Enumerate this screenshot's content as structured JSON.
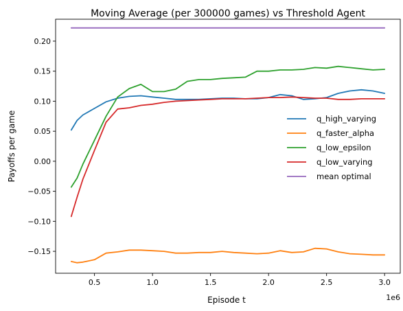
{
  "chart_data": {
    "type": "line",
    "title": "Moving Average (per 300000 games) vs Threshold Agent",
    "xlabel": "Episode t",
    "ylabel": "Payoffs per game",
    "x_offset_text": "1e6",
    "xlim": [
      0.165,
      3.135
    ],
    "ylim": [
      -0.1865,
      0.2365
    ],
    "xticks": [
      0.5,
      1.0,
      1.5,
      2.0,
      2.5,
      3.0
    ],
    "xtick_labels": [
      "0.5",
      "1.0",
      "1.5",
      "2.0",
      "2.5",
      "3.0"
    ],
    "yticks": [
      -0.15,
      -0.1,
      -0.05,
      0.0,
      0.05,
      0.1,
      0.15,
      0.2
    ],
    "ytick_labels": [
      "−0.15",
      "−0.10",
      "−0.05",
      "0.00",
      "0.05",
      "0.10",
      "0.15",
      "0.20"
    ],
    "grid": false,
    "legend_position": "center-right",
    "series": [
      {
        "name": "q_high_varying",
        "color": "#1f77b4",
        "x": [
          0.3,
          0.35,
          0.4,
          0.5,
          0.6,
          0.7,
          0.8,
          0.9,
          1.0,
          1.1,
          1.2,
          1.3,
          1.4,
          1.5,
          1.6,
          1.7,
          1.8,
          1.9,
          2.0,
          2.1,
          2.2,
          2.3,
          2.4,
          2.5,
          2.6,
          2.7,
          2.8,
          2.9,
          3.0
        ],
        "y": [
          0.052,
          0.068,
          0.077,
          0.088,
          0.099,
          0.105,
          0.108,
          0.109,
          0.107,
          0.105,
          0.103,
          0.103,
          0.103,
          0.104,
          0.105,
          0.105,
          0.104,
          0.104,
          0.106,
          0.111,
          0.109,
          0.103,
          0.104,
          0.106,
          0.113,
          0.117,
          0.119,
          0.117,
          0.113
        ]
      },
      {
        "name": "q_faster_alpha",
        "color": "#ff7f0e",
        "x": [
          0.3,
          0.35,
          0.4,
          0.5,
          0.6,
          0.7,
          0.8,
          0.9,
          1.0,
          1.1,
          1.2,
          1.3,
          1.4,
          1.5,
          1.6,
          1.7,
          1.8,
          1.9,
          2.0,
          2.1,
          2.2,
          2.3,
          2.4,
          2.5,
          2.6,
          2.7,
          2.8,
          2.9,
          3.0
        ],
        "y": [
          -0.167,
          -0.169,
          -0.168,
          -0.164,
          -0.153,
          -0.151,
          -0.148,
          -0.148,
          -0.149,
          -0.15,
          -0.153,
          -0.153,
          -0.152,
          -0.152,
          -0.15,
          -0.152,
          -0.153,
          -0.154,
          -0.153,
          -0.149,
          -0.152,
          -0.151,
          -0.145,
          -0.146,
          -0.151,
          -0.154,
          -0.155,
          -0.156,
          -0.156
        ]
      },
      {
        "name": "q_low_epsilon",
        "color": "#2ca02c",
        "x": [
          0.3,
          0.35,
          0.4,
          0.5,
          0.6,
          0.7,
          0.8,
          0.9,
          1.0,
          1.1,
          1.2,
          1.3,
          1.4,
          1.5,
          1.6,
          1.7,
          1.8,
          1.9,
          2.0,
          2.1,
          2.2,
          2.3,
          2.4,
          2.5,
          2.6,
          2.7,
          2.8,
          2.9,
          3.0
        ],
        "y": [
          -0.043,
          -0.028,
          -0.005,
          0.035,
          0.075,
          0.107,
          0.121,
          0.128,
          0.116,
          0.116,
          0.12,
          0.133,
          0.136,
          0.136,
          0.138,
          0.139,
          0.14,
          0.15,
          0.15,
          0.152,
          0.152,
          0.153,
          0.156,
          0.155,
          0.158,
          0.156,
          0.154,
          0.152,
          0.153
        ]
      },
      {
        "name": "q_low_varying",
        "color": "#d62728",
        "x": [
          0.3,
          0.35,
          0.4,
          0.5,
          0.6,
          0.7,
          0.8,
          0.9,
          1.0,
          1.1,
          1.2,
          1.3,
          1.4,
          1.5,
          1.6,
          1.7,
          1.8,
          1.9,
          2.0,
          2.1,
          2.2,
          2.3,
          2.4,
          2.5,
          2.6,
          2.7,
          2.8,
          2.9,
          3.0
        ],
        "y": [
          -0.092,
          -0.06,
          -0.03,
          0.018,
          0.065,
          0.087,
          0.089,
          0.093,
          0.095,
          0.098,
          0.1,
          0.101,
          0.102,
          0.103,
          0.104,
          0.104,
          0.104,
          0.105,
          0.106,
          0.106,
          0.107,
          0.106,
          0.105,
          0.105,
          0.103,
          0.103,
          0.104,
          0.104,
          0.104
        ]
      },
      {
        "name": "mean optimal",
        "color": "#9467bd",
        "x": [
          0.3,
          3.0
        ],
        "y": [
          0.222,
          0.222
        ]
      }
    ]
  }
}
